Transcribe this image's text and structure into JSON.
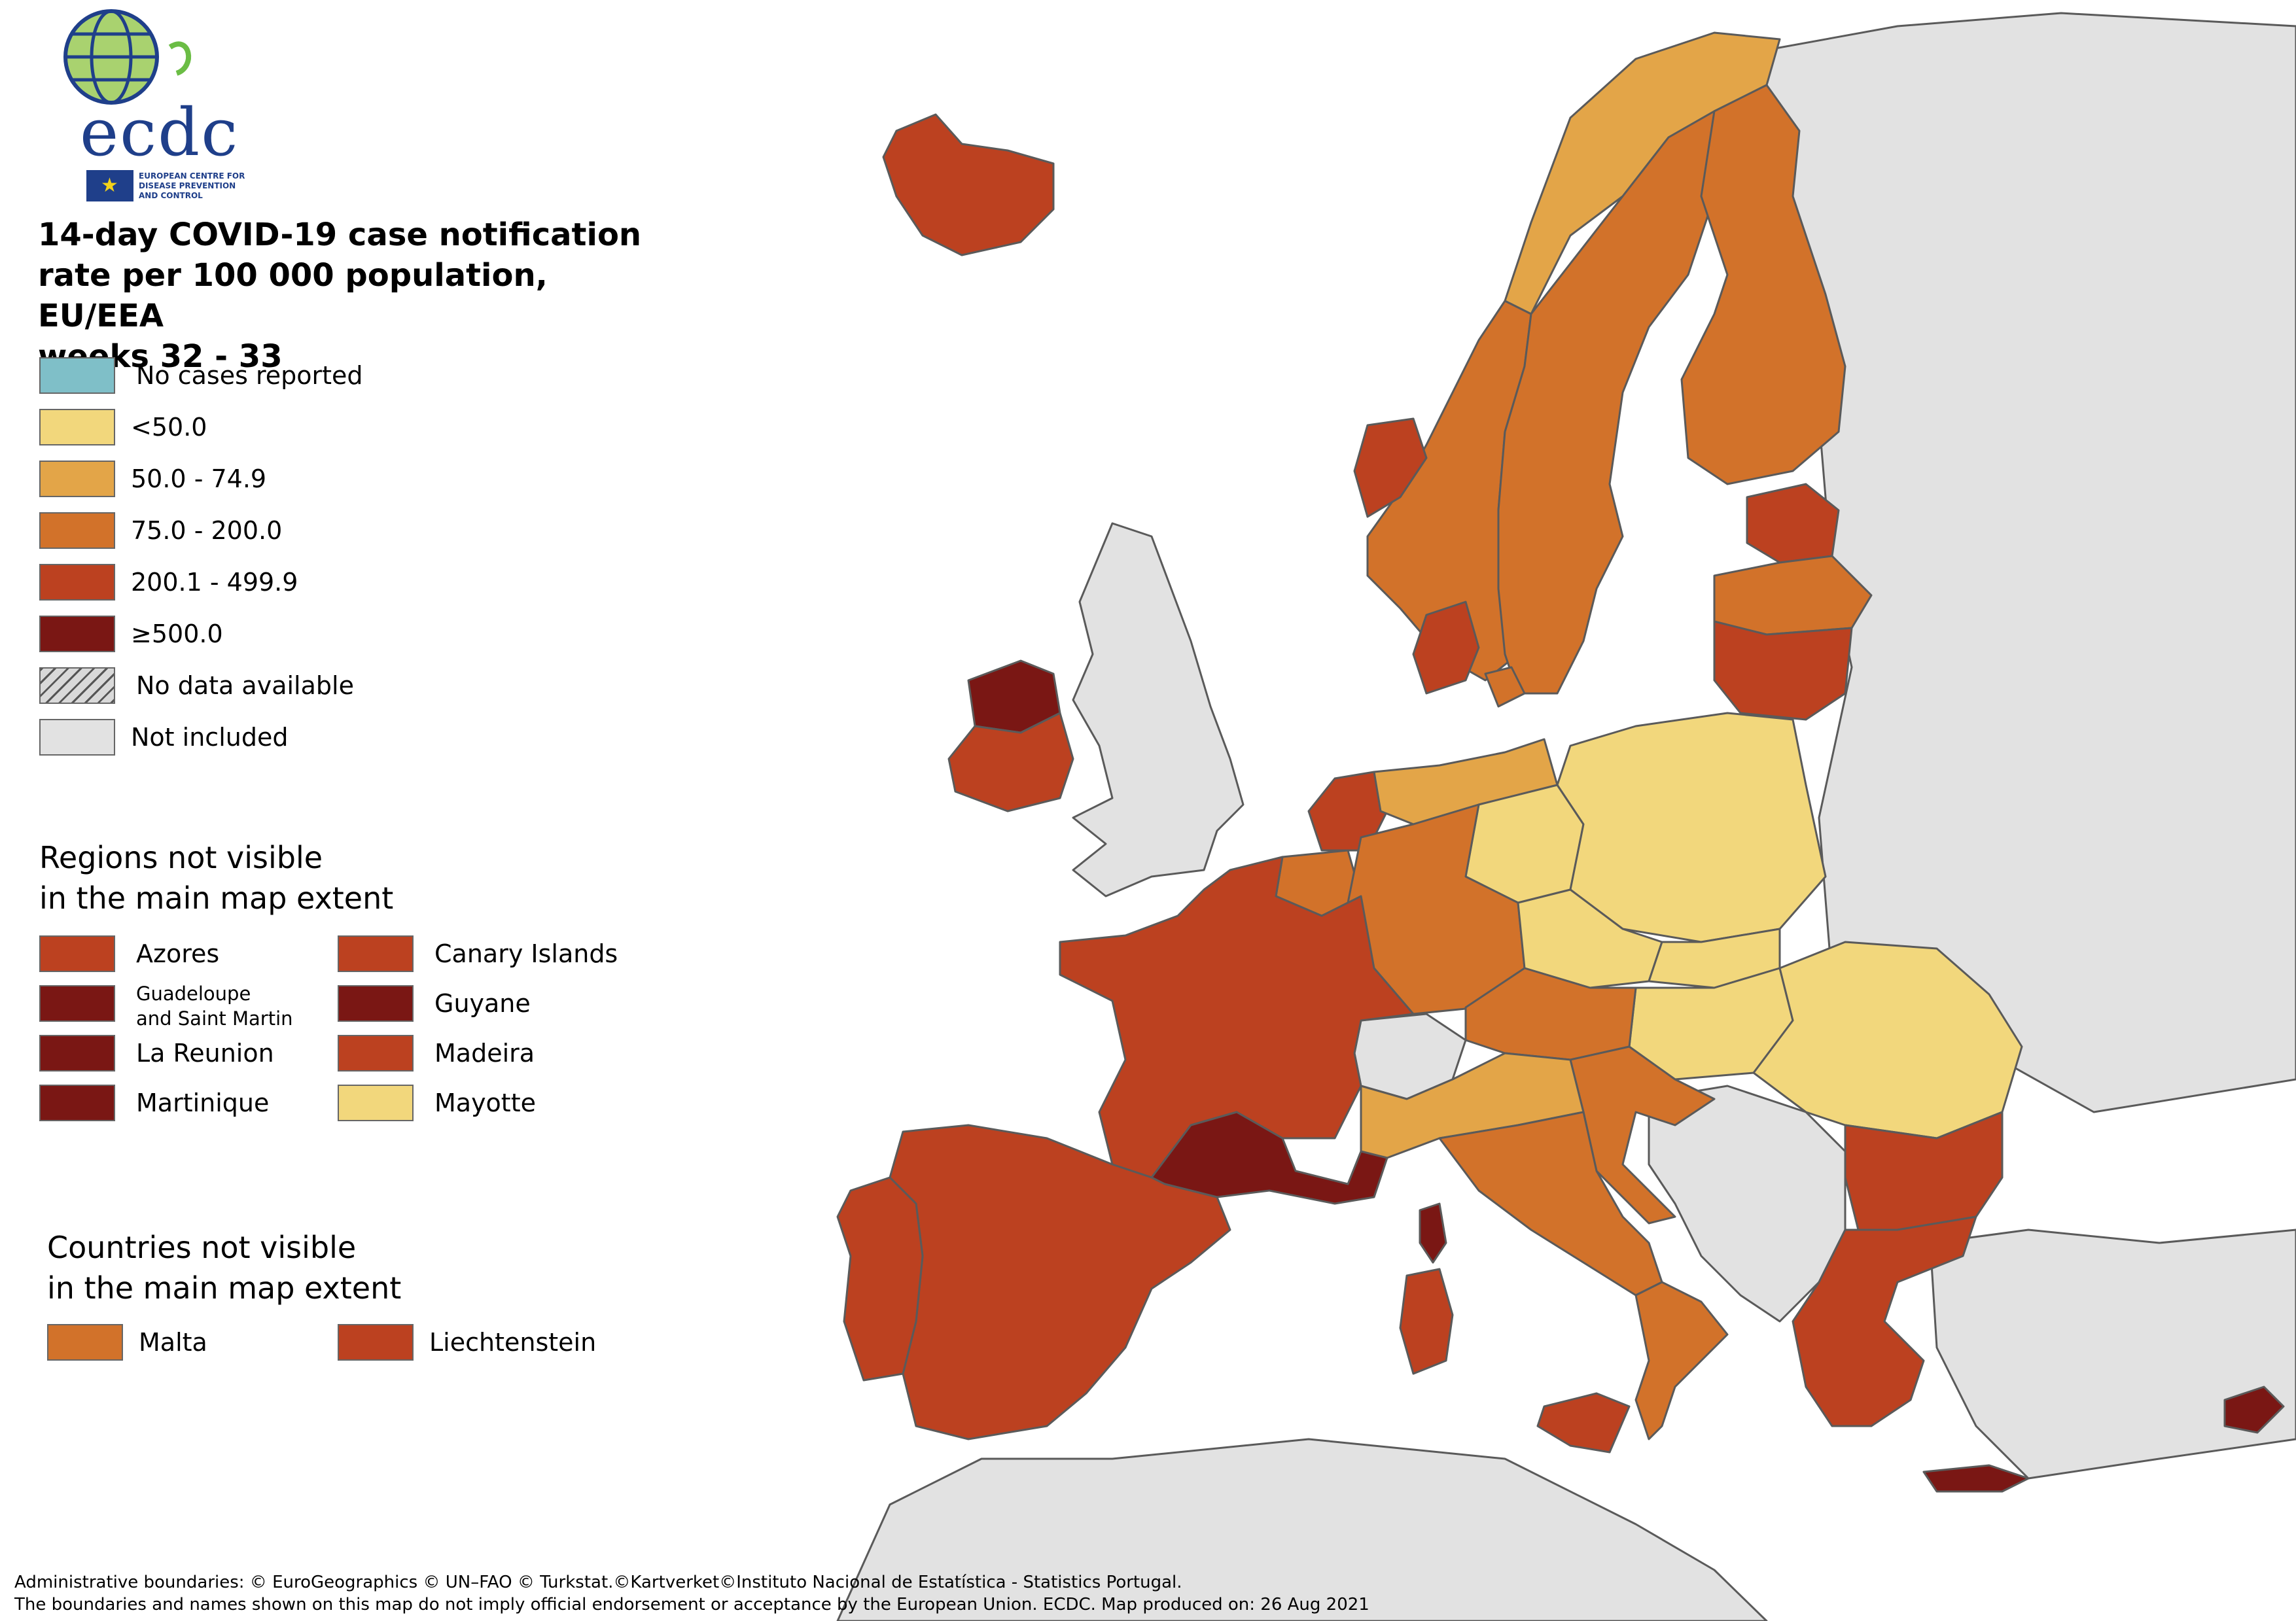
{
  "logo": {
    "wordmark": "ecdc",
    "subtitle_lines": [
      "EUROPEAN CENTRE FOR",
      "DISEASE PREVENTION",
      "AND CONTROL"
    ]
  },
  "title": {
    "line1": "14-day COVID-19 case notification",
    "line2": "rate per 100 000 population, EU/EEA",
    "line3": "weeks 32 - 33"
  },
  "legend": {
    "items": [
      {
        "label": "No cases reported",
        "color": "#7fbfc8"
      },
      {
        "label": "<50.0",
        "color": "#f2d77c"
      },
      {
        "label": "50.0 - 74.9",
        "color": "#e3a548"
      },
      {
        "label": "75.0 - 200.0",
        "color": "#d2722a"
      },
      {
        "label": "200.1 - 499.9",
        "color": "#bc4120"
      },
      {
        "label": "≥500.0",
        "color": "#7a1714"
      },
      {
        "label": "No data available",
        "color": "hatch"
      },
      {
        "label": "Not included",
        "color": "#e2e2e2"
      }
    ]
  },
  "regions_section": {
    "heading_line1": "Regions not visible",
    "heading_line2": "in the main map extent",
    "left": [
      {
        "label": "Azores",
        "color": "#bc4120"
      },
      {
        "label_line1": "Guadeloupe",
        "label_line2": "and Saint Martin",
        "color": "#7a1714"
      },
      {
        "label": "La Reunion",
        "color": "#7a1714"
      },
      {
        "label": "Martinique",
        "color": "#7a1714"
      }
    ],
    "right": [
      {
        "label": "Canary Islands",
        "color": "#bc4120"
      },
      {
        "label": "Guyane",
        "color": "#7a1714"
      },
      {
        "label": "Madeira",
        "color": "#bc4120"
      },
      {
        "label": "Mayotte",
        "color": "#f2d77c"
      }
    ]
  },
  "countries_section": {
    "heading_line1": "Countries not visible",
    "heading_line2": "in the main map extent",
    "items": [
      {
        "label": "Malta",
        "color": "#d2722a"
      },
      {
        "label": "Liechtenstein",
        "color": "#bc4120"
      }
    ]
  },
  "footer": {
    "line1": "Administrative boundaries: © EuroGeographics © UN–FAO © Turkstat.©Kartverket©Instituto Nacional de Estatística - Statistics Portugal.",
    "line2": "The boundaries and names shown on this map do not imply official endorsement or acceptance by the European Union. ECDC. Map produced on: 26 Aug 2021"
  },
  "map_colors": {
    "background": "#ffffff",
    "not_included": "#e2e2e2",
    "border": "#5a5a5a"
  },
  "map_regions": {
    "iceland": "200.1 - 499.9",
    "ireland_northwest": "≥500.0",
    "ireland_rest": "200.1 - 499.9",
    "norway": "75.0 - 200.0",
    "norway_west": "200.1 - 499.9",
    "norway_north": "50.0 - 74.9",
    "sweden": "75.0 - 200.0",
    "finland": "75.0 - 200.0",
    "estonia": "200.1 - 499.9",
    "latvia": "75.0 - 200.0",
    "lithuania": "200.1 - 499.9",
    "denmark": "200.1 - 499.9",
    "netherlands": "200.1 - 499.9",
    "belgium": "75.0 - 200.0",
    "germany_north": "50.0 - 74.9",
    "germany_east": "<50.0",
    "germany_south": "75.0 - 200.0",
    "poland": "<50.0",
    "czechia_slovakia": "<50.0",
    "hungary": "<50.0",
    "romania": "<50.0",
    "austria": "75.0 - 200.0",
    "slovenia_croatia": "75.0 - 200.0",
    "france": "200.1 - 499.9",
    "france_south": "≥500.0",
    "spain": "200.1 - 499.9",
    "portugal": "200.1 - 499.9",
    "italy_north": "50.0 - 74.9",
    "italy_center": "75.0 - 200.0",
    "italy_south": "75.0 - 200.0",
    "sicily_sardinia": "200.1 - 499.9",
    "corsica": "≥500.0",
    "bulgaria": "200.1 - 499.9",
    "greece": "200.1 - 499.9",
    "crete": "≥500.0",
    "cyprus": "≥500.0"
  }
}
